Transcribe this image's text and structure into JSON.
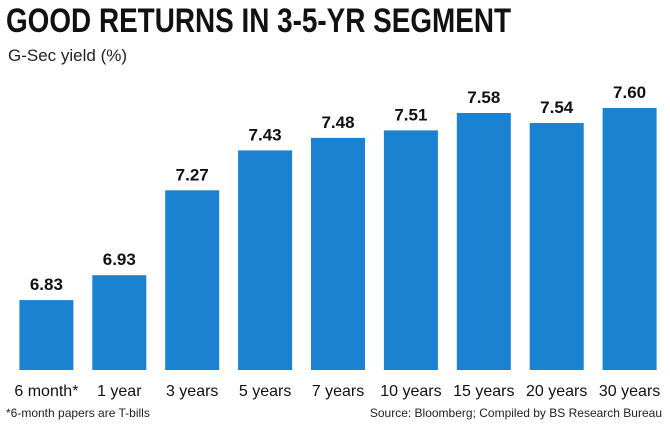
{
  "chart_data": {
    "type": "bar",
    "title": "GOOD RETURNS IN 3-5-YR SEGMENT",
    "subtitle": "G-Sec yield (%)",
    "categories": [
      "6 month*",
      "1 year",
      "3 years",
      "5 years",
      "7 years",
      "10 years",
      "15 years",
      "20 years",
      "30 years"
    ],
    "values": [
      6.83,
      6.93,
      7.27,
      7.43,
      7.48,
      7.51,
      7.58,
      7.54,
      7.6
    ],
    "value_labels": [
      "6.83",
      "6.93",
      "7.27",
      "7.43",
      "7.48",
      "7.51",
      "7.58",
      "7.54",
      "7.60"
    ],
    "ylim": [
      6.55,
      7.64
    ],
    "bar_color": "#1a82d1",
    "grid": false,
    "footnote": "*6-month papers are T-bills",
    "source": "Source: Bloomberg; Compiled by BS Research Bureau"
  }
}
